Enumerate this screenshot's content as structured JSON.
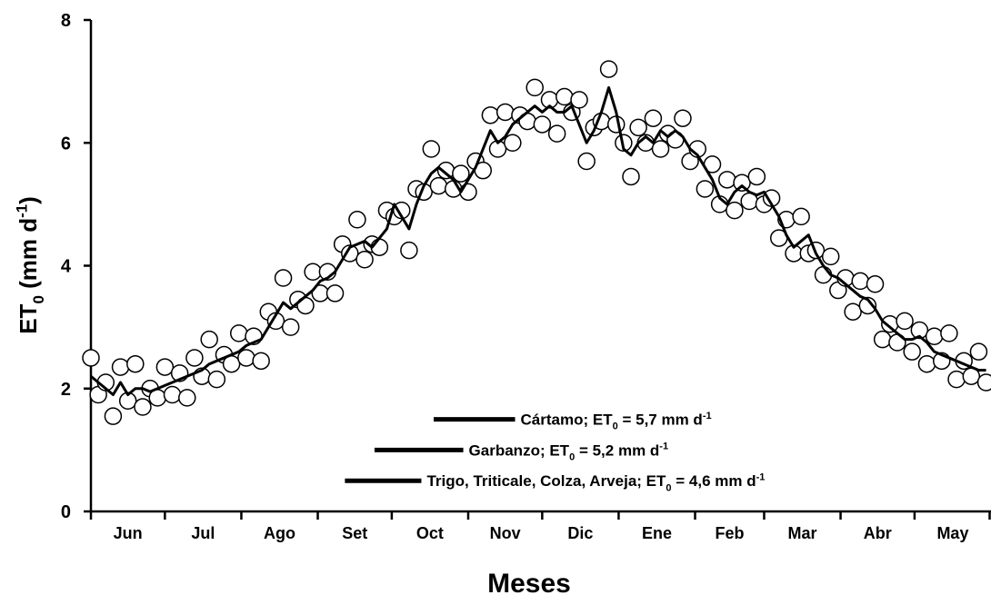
{
  "chart_data": {
    "type": "scatter",
    "xlabel": "Meses",
    "ylabel": [
      "ET",
      "0",
      " (mm d",
      "-1",
      ")"
    ],
    "categories": [
      "Jun",
      "Jul",
      "Ago",
      "Set",
      "Oct",
      "Nov",
      "Dic",
      "Ene",
      "Feb",
      "Mar",
      "Abr",
      "May"
    ],
    "xlim": [
      0,
      365
    ],
    "xticks": [
      0,
      30,
      61,
      92,
      122,
      153,
      183,
      214,
      245,
      273,
      304,
      334,
      365
    ],
    "ylim": [
      0,
      8
    ],
    "yticks": [
      0,
      2,
      4,
      6,
      8
    ],
    "x": [
      0,
      3,
      6,
      9,
      12,
      15,
      18,
      21,
      24,
      27,
      30,
      33,
      36,
      39,
      42,
      45,
      48,
      51,
      54,
      57,
      60,
      63,
      66,
      69,
      72,
      75,
      78,
      81,
      84,
      87,
      90,
      93,
      96,
      99,
      102,
      105,
      108,
      111,
      114,
      117,
      120,
      123,
      126,
      129,
      132,
      135,
      138,
      141,
      144,
      147,
      150,
      153,
      156,
      159,
      162,
      165,
      168,
      171,
      174,
      177,
      180,
      183,
      186,
      189,
      192,
      195,
      198,
      201,
      204,
      207,
      210,
      213,
      216,
      219,
      222,
      225,
      228,
      231,
      234,
      237,
      240,
      243,
      246,
      249,
      252,
      255,
      258,
      261,
      264,
      267,
      270,
      273,
      276,
      279,
      282,
      285,
      288,
      291,
      294,
      297,
      300,
      303,
      306,
      309,
      312,
      315,
      318,
      321,
      324,
      327,
      330,
      333,
      336,
      339,
      342,
      345,
      348,
      351,
      354,
      357,
      360,
      363
    ],
    "series": [
      {
        "type": "scatter",
        "color": "#000000",
        "fill": "#ffffff",
        "values": [
          2.5,
          1.9,
          2.1,
          1.55,
          2.35,
          1.8,
          2.4,
          1.7,
          2.0,
          1.85,
          2.35,
          1.9,
          2.25,
          1.85,
          2.5,
          2.2,
          2.8,
          2.15,
          2.55,
          2.4,
          2.9,
          2.5,
          2.85,
          2.45,
          3.25,
          3.1,
          3.8,
          3.0,
          3.45,
          3.35,
          3.9,
          3.55,
          3.9,
          3.55,
          4.35,
          4.2,
          4.75,
          4.1,
          4.35,
          4.3,
          4.9,
          4.8,
          4.9,
          4.25,
          5.25,
          5.2,
          5.9,
          5.3,
          5.55,
          5.25,
          5.5,
          5.2,
          5.7,
          5.55,
          6.45,
          5.9,
          6.5,
          6.0,
          6.45,
          6.35,
          6.9,
          6.3,
          6.7,
          6.15,
          6.75,
          6.5,
          6.7,
          5.7,
          6.25,
          6.35,
          7.2,
          6.3,
          6.0,
          5.45,
          6.25,
          6.0,
          6.4,
          5.9,
          6.15,
          6.05,
          6.4,
          5.7,
          5.9,
          5.25,
          5.65,
          5.0,
          5.4,
          4.9,
          5.35,
          5.05,
          5.45,
          5.0,
          5.1,
          4.45,
          4.75,
          4.2,
          4.8,
          4.2,
          4.25,
          3.85,
          4.15,
          3.6,
          3.8,
          3.25,
          3.75,
          3.35,
          3.7,
          2.8,
          3.05,
          2.75,
          3.1,
          2.6,
          2.95,
          2.4,
          2.85,
          2.45,
          2.9,
          2.15,
          2.45,
          2.2,
          2.6,
          2.1
        ]
      },
      {
        "type": "line",
        "color": "#000000",
        "values": [
          2.2,
          2.1,
          2.0,
          1.9,
          2.1,
          1.9,
          2.0,
          2.0,
          1.95,
          2.0,
          2.05,
          2.1,
          2.15,
          2.2,
          2.25,
          2.3,
          2.4,
          2.45,
          2.5,
          2.55,
          2.6,
          2.7,
          2.75,
          2.8,
          3.0,
          3.2,
          3.4,
          3.3,
          3.4,
          3.5,
          3.6,
          3.75,
          3.8,
          3.9,
          4.1,
          4.3,
          4.35,
          4.4,
          4.3,
          4.45,
          4.6,
          5.0,
          4.8,
          4.6,
          5.0,
          5.3,
          5.5,
          5.6,
          5.5,
          5.4,
          5.2,
          5.4,
          5.6,
          5.9,
          6.2,
          6.0,
          6.1,
          6.3,
          6.4,
          6.5,
          6.6,
          6.5,
          6.6,
          6.5,
          6.5,
          6.6,
          6.3,
          6.0,
          6.2,
          6.5,
          6.9,
          6.5,
          5.9,
          5.8,
          6.0,
          6.1,
          6.0,
          6.2,
          6.1,
          6.2,
          6.1,
          5.9,
          5.8,
          5.6,
          5.4,
          5.1,
          5.0,
          5.2,
          5.3,
          5.2,
          5.15,
          5.2,
          5.0,
          4.8,
          4.5,
          4.3,
          4.4,
          4.5,
          4.2,
          4.0,
          3.85,
          3.8,
          3.7,
          3.6,
          3.5,
          3.45,
          3.3,
          3.1,
          3.0,
          2.9,
          2.8,
          2.8,
          2.85,
          2.75,
          2.6,
          2.55,
          2.5,
          2.45,
          2.4,
          2.35,
          2.3,
          2.3
        ]
      }
    ],
    "annotations": [
      {
        "text": [
          "Cártamo; ET",
          "0",
          " = 5,7 mm d",
          "-1"
        ],
        "x": [
          139,
          172
        ],
        "y": 1.5
      },
      {
        "text": [
          "Garbanzo;  ET",
          "0",
          " = 5,2 mm d",
          "-1"
        ],
        "x": [
          115,
          151
        ],
        "y": 1.0
      },
      {
        "text": [
          "Trigo, Triticale, Colza, Arveja; ET",
          "0",
          " = 4,6 mm d",
          "-1"
        ],
        "x": [
          103,
          134
        ],
        "y": 0.5
      }
    ]
  }
}
